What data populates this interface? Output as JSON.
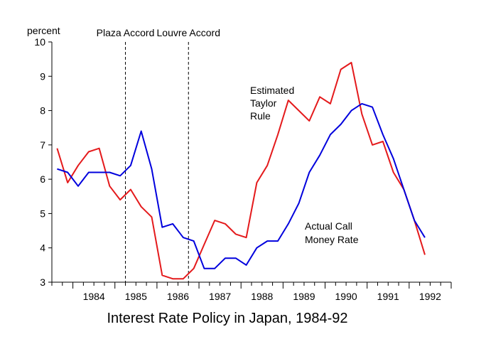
{
  "chart_data": {
    "type": "line",
    "title": "Interest Rate Policy in Japan, 1984-92",
    "ylabel": "percent",
    "xlabel": "",
    "ylim": [
      3,
      10
    ],
    "xlim": [
      1983.5,
      1993.0
    ],
    "yticks": [
      3,
      4,
      5,
      6,
      7,
      8,
      9,
      10
    ],
    "xtick_labels": [
      "1984",
      "1985",
      "1986",
      "1987",
      "1988",
      "1989",
      "1990",
      "1991",
      "1992"
    ],
    "grid": false,
    "annotations": [
      {
        "text": "Plaza Accord",
        "x": 1985.25
      },
      {
        "text": "Louvre Accord",
        "x": 1986.75
      }
    ],
    "series": [
      {
        "name": "Estimated Taylor Rule",
        "label_lines": [
          "Estimated",
          "Taylor",
          "Rule"
        ],
        "color": "#e41a1c",
        "x": [
          1983.625,
          1983.875,
          1984.125,
          1984.375,
          1984.625,
          1984.875,
          1985.125,
          1985.375,
          1985.625,
          1985.875,
          1986.125,
          1986.375,
          1986.625,
          1986.875,
          1987.125,
          1987.375,
          1987.625,
          1987.875,
          1988.125,
          1988.375,
          1988.625,
          1988.875,
          1989.125,
          1989.375,
          1989.625,
          1989.875,
          1990.125,
          1990.375,
          1990.625,
          1990.875,
          1991.125,
          1991.375,
          1991.625,
          1991.875,
          1992.125,
          1992.375
        ],
        "values": [
          6.9,
          5.9,
          6.4,
          6.8,
          6.9,
          5.8,
          5.4,
          5.7,
          5.2,
          4.9,
          3.2,
          3.1,
          3.1,
          3.4,
          4.1,
          4.8,
          4.7,
          4.4,
          4.3,
          5.9,
          6.4,
          7.3,
          8.3,
          8.0,
          7.7,
          8.4,
          8.2,
          9.2,
          9.4,
          7.9,
          7.0,
          7.1,
          6.2,
          5.7,
          4.8,
          3.8
        ]
      },
      {
        "name": "Actual Call Money Rate",
        "label_lines": [
          "Actual Call",
          "Money Rate"
        ],
        "color": "#0000dd",
        "x": [
          1983.625,
          1983.875,
          1984.125,
          1984.375,
          1984.625,
          1984.875,
          1985.125,
          1985.375,
          1985.625,
          1985.875,
          1986.125,
          1986.375,
          1986.625,
          1986.875,
          1987.125,
          1987.375,
          1987.625,
          1987.875,
          1988.125,
          1988.375,
          1988.625,
          1988.875,
          1989.125,
          1989.375,
          1989.625,
          1989.875,
          1990.125,
          1990.375,
          1990.625,
          1990.875,
          1991.125,
          1991.375,
          1991.625,
          1991.875,
          1992.125,
          1992.375
        ],
        "values": [
          6.3,
          6.2,
          5.8,
          6.2,
          6.2,
          6.2,
          6.1,
          6.4,
          7.4,
          6.3,
          4.6,
          4.7,
          4.3,
          4.2,
          3.4,
          3.4,
          3.7,
          3.7,
          3.5,
          4.0,
          4.2,
          4.2,
          4.7,
          5.3,
          6.2,
          6.7,
          7.3,
          7.6,
          8.0,
          8.2,
          8.1,
          7.3,
          6.6,
          5.7,
          4.8,
          4.3
        ]
      }
    ]
  }
}
